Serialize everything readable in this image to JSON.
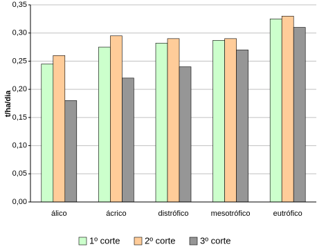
{
  "chart_data": {
    "type": "bar",
    "y_label": "t/ha/dia",
    "categories": [
      "álico",
      "ácrico",
      "distrófico",
      "mesotrófico",
      "eutrófico"
    ],
    "series": [
      {
        "name": "1º corte",
        "color": "#ccffcc",
        "values": [
          0.245,
          0.275,
          0.282,
          0.287,
          0.325
        ]
      },
      {
        "name": "2º corte",
        "color": "#ffcc99",
        "values": [
          0.26,
          0.295,
          0.29,
          0.29,
          0.33
        ]
      },
      {
        "name": "3º corte",
        "color": "#969696",
        "values": [
          0.18,
          0.22,
          0.24,
          0.27,
          0.31
        ]
      }
    ],
    "ylim": [
      0,
      0.35
    ],
    "yticks": [
      {
        "value": 0,
        "label": "0,00"
      },
      {
        "value": 0.05,
        "label": "0,05"
      },
      {
        "value": 0.1,
        "label": "0,10"
      },
      {
        "value": 0.15,
        "label": "0,15"
      },
      {
        "value": 0.2,
        "label": "0,20"
      },
      {
        "value": 0.25,
        "label": "0,25"
      },
      {
        "value": 0.3,
        "label": "0,30"
      },
      {
        "value": 0.35,
        "label": "0,35"
      }
    ],
    "grid": true,
    "legend": "bottom"
  }
}
